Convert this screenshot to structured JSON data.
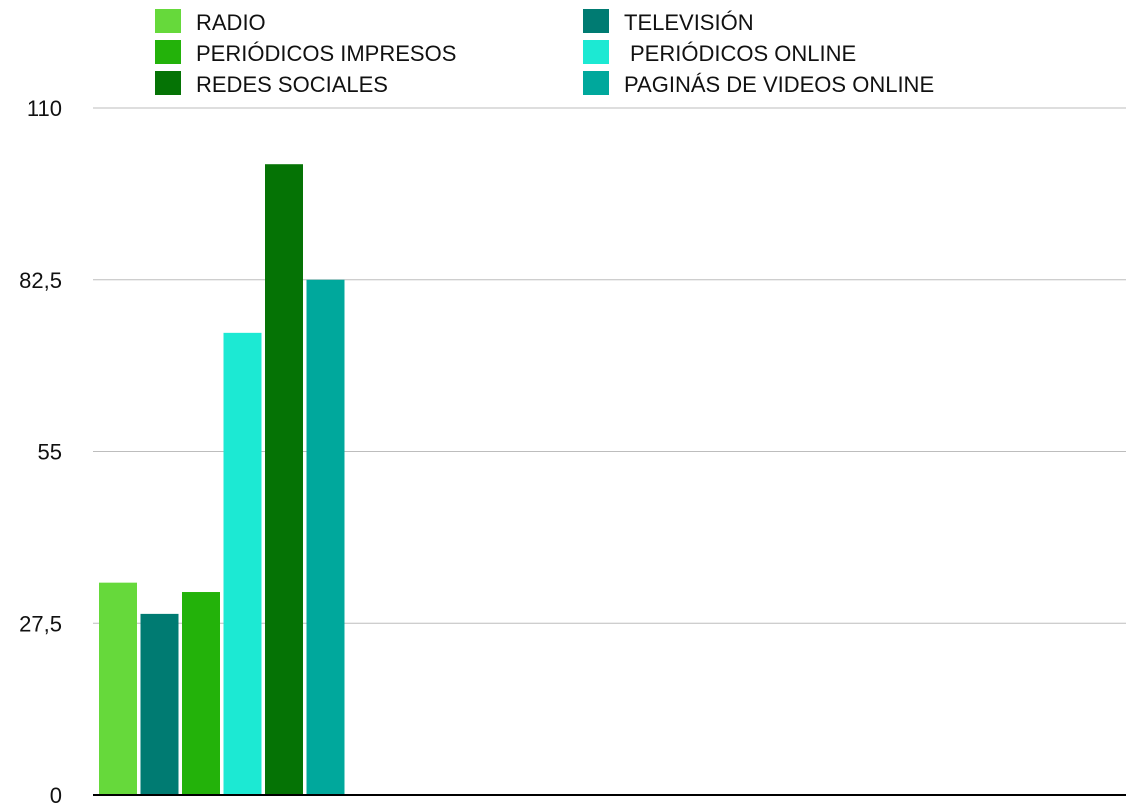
{
  "chart_data": {
    "type": "bar",
    "categories": [
      ""
    ],
    "series": [
      {
        "name": "RADIO",
        "values": [
          34
        ],
        "color": "#66d93b"
      },
      {
        "name": "TELEVISIÓN",
        "values": [
          29
        ],
        "color": "#007b72"
      },
      {
        "name": "PERIÓDICOS IMPRESOS",
        "values": [
          32.5
        ],
        "color": "#23b20a"
      },
      {
        "name": "PERIÓDICOS ONLINE",
        "values": [
          74
        ],
        "color": "#1ce9d3"
      },
      {
        "name": "REDES SOCIALES",
        "values": [
          101
        ],
        "color": "#057305"
      },
      {
        "name": "PAGINÁS DE VIDEOS ONLINE",
        "values": [
          82.5
        ],
        "color": "#00a89c"
      }
    ],
    "yticks": [
      "0",
      "27,5",
      "55",
      "82,5",
      "110"
    ],
    "ylim": [
      0,
      110
    ],
    "grid": true,
    "legend_position": "top",
    "title": "",
    "xlabel": "",
    "ylabel": ""
  }
}
